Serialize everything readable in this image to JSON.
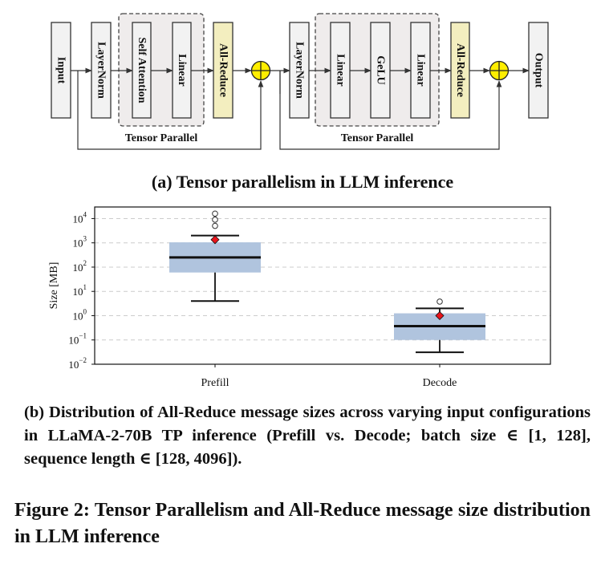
{
  "diagram": {
    "blocks": {
      "input": "Input",
      "layernorm1": "LayerNorm",
      "self_attention": "Self Attention",
      "linear1": "Linear",
      "allreduce1": "All-Reduce",
      "layernorm2": "LayerNorm",
      "linear2": "Linear",
      "gelu": "GeLU",
      "linear3": "Linear",
      "allreduce2": "All-Reduce",
      "output": "Output"
    },
    "group_label_1": "Tensor Parallel",
    "group_label_2": "Tensor Parallel",
    "colors": {
      "block_fill": "#f2f2f2",
      "allreduce_fill": "#f3eebf",
      "group_fill": "#efecec",
      "adder_fill": "#ffee00"
    }
  },
  "captions": {
    "a": "(a) Tensor parallelism in LLM inference",
    "b_lines": [
      "(b) Distribution of All-Reduce message sizes across varying input",
      "configurations in LLaMA-2-70B TP inference (Prefill vs. Decode;",
      "batch size ∈ [1, 128], sequence length ∈ [128, 4096])."
    ],
    "figure_lines": [
      "Figure 2: Tensor Parallelism and All-Reduce message size",
      "distribution in LLM inference"
    ]
  },
  "chart_data": {
    "type": "box",
    "title": "",
    "xlabel": "",
    "ylabel": "Size [MB]",
    "yscale": "log",
    "ylim": [
      0.01,
      30000
    ],
    "yticks": [
      {
        "base": "10",
        "exp": "4",
        "value": 10000
      },
      {
        "base": "10",
        "exp": "3",
        "value": 1000
      },
      {
        "base": "10",
        "exp": "2",
        "value": 100
      },
      {
        "base": "10",
        "exp": "1",
        "value": 10
      },
      {
        "base": "10",
        "exp": "0",
        "value": 1
      },
      {
        "base": "10",
        "exp": "−1",
        "value": 0.1
      },
      {
        "base": "10",
        "exp": "−2",
        "value": 0.01
      }
    ],
    "grid": "horizontal dashed",
    "categories": [
      "Prefill",
      "Decode"
    ],
    "boxes": [
      {
        "name": "Prefill",
        "whisker_low": 4,
        "q1": 60,
        "median": 250,
        "q3": 1050,
        "whisker_high": 2000,
        "mean": 1350,
        "outliers": [
          5000,
          9000,
          16000
        ]
      },
      {
        "name": "Decode",
        "whisker_low": 0.031,
        "q1": 0.1,
        "median": 0.37,
        "q3": 1.25,
        "whisker_high": 2.0,
        "mean": 1.0,
        "outliers": [
          3.8
        ]
      }
    ],
    "colors": {
      "box": "#b0c4de",
      "median": "#111111",
      "mean": "#e8141c",
      "grid": "#cccccc"
    }
  }
}
